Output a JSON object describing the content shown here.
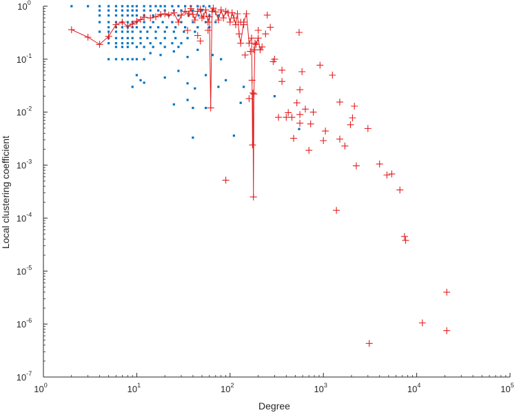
{
  "chart_data": {
    "type": "scatter",
    "xlabel": "Degree",
    "ylabel": "Local clustering coefficient",
    "xscale": "log",
    "yscale": "log",
    "xlim": [
      1,
      100000
    ],
    "ylim": [
      1e-07,
      1
    ],
    "grid": false,
    "legend": "none",
    "x_ticks": [
      {
        "base": "10",
        "exp": "0"
      },
      {
        "base": "10",
        "exp": "1"
      },
      {
        "base": "10",
        "exp": "2"
      },
      {
        "base": "10",
        "exp": "3"
      },
      {
        "base": "10",
        "exp": "4"
      },
      {
        "base": "10",
        "exp": "5"
      }
    ],
    "y_ticks": [
      {
        "base": "10",
        "exp": "-7"
      },
      {
        "base": "10",
        "exp": "-6"
      },
      {
        "base": "10",
        "exp": "-5"
      },
      {
        "base": "10",
        "exp": "-4"
      },
      {
        "base": "10",
        "exp": "-3"
      },
      {
        "base": "10",
        "exp": "-2"
      },
      {
        "base": "10",
        "exp": "-1"
      },
      {
        "base": "10",
        "exp": "0"
      }
    ],
    "series": [
      {
        "marker": "dot",
        "color": "#0072BD",
        "points": [
          [
            2,
            1
          ],
          [
            3,
            1
          ],
          [
            4,
            1
          ],
          [
            5,
            1
          ],
          [
            6,
            1
          ],
          [
            7,
            1
          ],
          [
            8,
            1
          ],
          [
            9,
            1
          ],
          [
            10,
            1
          ],
          [
            12,
            1
          ],
          [
            14,
            1
          ],
          [
            16,
            1
          ],
          [
            18,
            1
          ],
          [
            20,
            1
          ],
          [
            24,
            1
          ],
          [
            28,
            1
          ],
          [
            33,
            1
          ],
          [
            38,
            1
          ],
          [
            45,
            1
          ],
          [
            52,
            1
          ],
          [
            60,
            1
          ],
          [
            4,
            0.83
          ],
          [
            5,
            0.83
          ],
          [
            6,
            0.83
          ],
          [
            7,
            0.83
          ],
          [
            8,
            0.83
          ],
          [
            9,
            0.83
          ],
          [
            10,
            0.83
          ],
          [
            12,
            0.83
          ],
          [
            14,
            0.83
          ],
          [
            17,
            0.83
          ],
          [
            20,
            0.83
          ],
          [
            25,
            0.83
          ],
          [
            30,
            0.83
          ],
          [
            40,
            0.83
          ],
          [
            50,
            0.83
          ],
          [
            65,
            0.83
          ],
          [
            4,
            0.67
          ],
          [
            5,
            0.67
          ],
          [
            6,
            0.67
          ],
          [
            7,
            0.67
          ],
          [
            8,
            0.67
          ],
          [
            9,
            0.67
          ],
          [
            10,
            0.67
          ],
          [
            12,
            0.67
          ],
          [
            15,
            0.67
          ],
          [
            18,
            0.67
          ],
          [
            22,
            0.67
          ],
          [
            28,
            0.67
          ],
          [
            36,
            0.67
          ],
          [
            46,
            0.67
          ],
          [
            60,
            0.67
          ],
          [
            75,
            0.67
          ],
          [
            4,
            0.5
          ],
          [
            5,
            0.5
          ],
          [
            6,
            0.5
          ],
          [
            7,
            0.5
          ],
          [
            8,
            0.5
          ],
          [
            9,
            0.5
          ],
          [
            10,
            0.5
          ],
          [
            12,
            0.5
          ],
          [
            15,
            0.5
          ],
          [
            19,
            0.5
          ],
          [
            24,
            0.5
          ],
          [
            30,
            0.5
          ],
          [
            40,
            0.5
          ],
          [
            55,
            0.5
          ],
          [
            70,
            0.5
          ],
          [
            5,
            0.4
          ],
          [
            6,
            0.4
          ],
          [
            7,
            0.4
          ],
          [
            8,
            0.4
          ],
          [
            9,
            0.4
          ],
          [
            10,
            0.4
          ],
          [
            12,
            0.4
          ],
          [
            14,
            0.4
          ],
          [
            17,
            0.4
          ],
          [
            21,
            0.4
          ],
          [
            26,
            0.4
          ],
          [
            33,
            0.4
          ],
          [
            45,
            0.4
          ],
          [
            60,
            0.4
          ],
          [
            4,
            0.33
          ],
          [
            5,
            0.33
          ],
          [
            6,
            0.33
          ],
          [
            7,
            0.33
          ],
          [
            8,
            0.33
          ],
          [
            9,
            0.33
          ],
          [
            11,
            0.33
          ],
          [
            13,
            0.33
          ],
          [
            16,
            0.33
          ],
          [
            20,
            0.33
          ],
          [
            25,
            0.33
          ],
          [
            32,
            0.33
          ],
          [
            42,
            0.33
          ],
          [
            5,
            0.25
          ],
          [
            6,
            0.25
          ],
          [
            7,
            0.25
          ],
          [
            8,
            0.25
          ],
          [
            9,
            0.25
          ],
          [
            11,
            0.25
          ],
          [
            13,
            0.25
          ],
          [
            16,
            0.25
          ],
          [
            20,
            0.25
          ],
          [
            26,
            0.25
          ],
          [
            35,
            0.25
          ],
          [
            5,
            0.2
          ],
          [
            6,
            0.2
          ],
          [
            7,
            0.2
          ],
          [
            8,
            0.2
          ],
          [
            9,
            0.2
          ],
          [
            11,
            0.2
          ],
          [
            14,
            0.2
          ],
          [
            18,
            0.2
          ],
          [
            24,
            0.2
          ],
          [
            30,
            0.2
          ],
          [
            6,
            0.17
          ],
          [
            7,
            0.17
          ],
          [
            8,
            0.17
          ],
          [
            10,
            0.17
          ],
          [
            12,
            0.17
          ],
          [
            15,
            0.17
          ],
          [
            20,
            0.17
          ],
          [
            28,
            0.17
          ],
          [
            5,
            0.1
          ],
          [
            6,
            0.1
          ],
          [
            7,
            0.1
          ],
          [
            8,
            0.1
          ],
          [
            9,
            0.1
          ],
          [
            10,
            0.1
          ],
          [
            12,
            0.1
          ],
          [
            14,
            0.13
          ],
          [
            18,
            0.12
          ],
          [
            25,
            0.14
          ],
          [
            35,
            0.11
          ],
          [
            45,
            0.15
          ],
          [
            65,
            0.12
          ],
          [
            80,
            0.1
          ],
          [
            10,
            0.05
          ],
          [
            11,
            0.04
          ],
          [
            9,
            0.03
          ],
          [
            12,
            0.036
          ],
          [
            20,
            0.045
          ],
          [
            28,
            0.06
          ],
          [
            35,
            0.035
          ],
          [
            42,
            0.028
          ],
          [
            55,
            0.05
          ],
          [
            75,
            0.03
          ],
          [
            90,
            0.04
          ],
          [
            25,
            0.014
          ],
          [
            35,
            0.017
          ],
          [
            40,
            0.012
          ],
          [
            55,
            0.012
          ],
          [
            40,
            0.0033
          ],
          [
            110,
            0.0036
          ],
          [
            130,
            0.015
          ],
          [
            140,
            0.03
          ],
          [
            550,
            0.0048
          ],
          [
            300,
            0.02
          ]
        ]
      },
      {
        "marker": "plus-line",
        "color": "#E41A1C",
        "points": [
          [
            2,
            0.36
          ],
          [
            3,
            0.26
          ],
          [
            4,
            0.19
          ],
          [
            5,
            0.27
          ],
          [
            6,
            0.45
          ],
          [
            7,
            0.5
          ],
          [
            8,
            0.42
          ],
          [
            9,
            0.46
          ],
          [
            10,
            0.52
          ],
          [
            11,
            0.56
          ],
          [
            12,
            0.62
          ],
          [
            14,
            0.6
          ],
          [
            16,
            0.63
          ],
          [
            18,
            0.7
          ],
          [
            20,
            0.72
          ],
          [
            22,
            0.68
          ],
          [
            25,
            0.75
          ],
          [
            28,
            0.5
          ],
          [
            30,
            0.68
          ],
          [
            33,
            0.8
          ],
          [
            36,
            0.72
          ],
          [
            38,
            0.9
          ],
          [
            40,
            0.7
          ],
          [
            42,
            0.55
          ],
          [
            45,
            0.8
          ],
          [
            48,
            0.88
          ],
          [
            50,
            0.6
          ],
          [
            52,
            0.65
          ],
          [
            55,
            0.85
          ],
          [
            58,
            0.5
          ],
          [
            60,
            0.63
          ],
          [
            62,
            0.012
          ],
          [
            64,
            0.8
          ],
          [
            66,
            0.92
          ],
          [
            70,
            0.78
          ],
          [
            75,
            0.55
          ],
          [
            80,
            0.85
          ],
          [
            85,
            0.6
          ],
          [
            90,
            0.8
          ],
          [
            95,
            0.75
          ],
          [
            100,
            0.5
          ],
          [
            105,
            0.75
          ],
          [
            110,
            0.6
          ],
          [
            115,
            0.45
          ],
          [
            120,
            0.72
          ],
          [
            125,
            0.3
          ],
          [
            130,
            0.2
          ],
          [
            140,
            0.5
          ],
          [
            150,
            0.72
          ],
          [
            160,
            0.2
          ],
          [
            170,
            0.25
          ],
          [
            172,
            0.04
          ],
          [
            174,
            0.0024
          ],
          [
            176,
            0.023
          ],
          [
            178,
            0.00025
          ],
          [
            180,
            0.022
          ],
          [
            185,
            0.2
          ],
          [
            190,
            0.19
          ],
          [
            200,
            0.25
          ],
          [
            210,
            0.15
          ],
          [
            220,
            0.17
          ]
        ]
      },
      {
        "marker": "plus",
        "color": "#E41A1C",
        "points": [
          [
            35,
            0.35
          ],
          [
            45,
            0.28
          ],
          [
            48,
            0.22
          ],
          [
            58,
            0.35
          ],
          [
            130,
            0.5
          ],
          [
            140,
            0.45
          ],
          [
            145,
            0.12
          ],
          [
            160,
            0.018
          ],
          [
            165,
            0.14
          ],
          [
            180,
            0.15
          ],
          [
            200,
            0.35
          ],
          [
            250,
            0.68
          ],
          [
            240,
            0.3
          ],
          [
            270,
            0.4
          ],
          [
            290,
            0.09
          ],
          [
            300,
            0.1
          ],
          [
            330,
            0.008
          ],
          [
            360,
            0.038
          ],
          [
            400,
            0.008
          ],
          [
            420,
            0.0098
          ],
          [
            460,
            0.008
          ],
          [
            480,
            0.0032
          ],
          [
            520,
            0.015
          ],
          [
            550,
            0.32
          ],
          [
            560,
            0.0265
          ],
          [
            560,
            0.009
          ],
          [
            560,
            0.0062
          ],
          [
            590,
            0.058
          ],
          [
            640,
            0.0114
          ],
          [
            700,
            0.0019
          ],
          [
            730,
            0.006
          ],
          [
            780,
            0.01
          ],
          [
            920,
            0.077
          ],
          [
            1000,
            0.0029
          ],
          [
            1050,
            0.0044
          ],
          [
            1250,
            0.05
          ],
          [
            1380,
            0.00014
          ],
          [
            1500,
            0.0155
          ],
          [
            1500,
            0.0031
          ],
          [
            1700,
            0.0023
          ],
          [
            1950,
            0.0058
          ],
          [
            2050,
            0.0078
          ],
          [
            2150,
            0.013
          ],
          [
            2250,
            0.00097
          ],
          [
            3000,
            0.0049
          ],
          [
            3100,
            4.3e-07
          ],
          [
            4000,
            0.00105
          ],
          [
            4800,
            0.00065
          ],
          [
            5400,
            0.00068
          ],
          [
            6600,
            0.00034
          ],
          [
            7400,
            4.5e-05
          ],
          [
            7600,
            3.8e-05
          ],
          [
            11500,
            1.05e-06
          ],
          [
            21000,
            4e-06
          ],
          [
            21000,
            7.5e-07
          ],
          [
            90,
            0.00052
          ],
          [
            360,
            0.062
          ]
        ]
      }
    ]
  }
}
